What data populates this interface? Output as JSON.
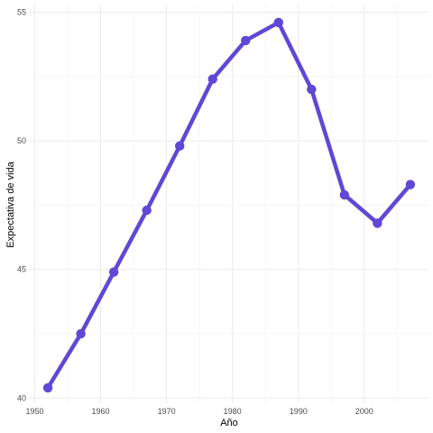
{
  "chart_data": {
    "type": "line",
    "xlabel": "Año",
    "ylabel": "Expectativa de vida",
    "x": [
      1952,
      1957,
      1962,
      1967,
      1972,
      1977,
      1982,
      1987,
      1992,
      1997,
      2002,
      2007
    ],
    "series": [
      {
        "values": [
          40.4,
          42.5,
          44.9,
          47.3,
          49.8,
          52.4,
          53.9,
          54.6,
          52.0,
          47.9,
          46.8,
          48.3
        ],
        "color": "#6047d6"
      }
    ],
    "xlim": [
      1949.25,
      2009.75
    ],
    "ylim": [
      39.8,
      55.3
    ],
    "xticks": [
      1950,
      1960,
      1970,
      1980,
      1990,
      2000
    ],
    "yticks": [
      40,
      45,
      50,
      55
    ],
    "grid": true,
    "theme": "minimal"
  }
}
